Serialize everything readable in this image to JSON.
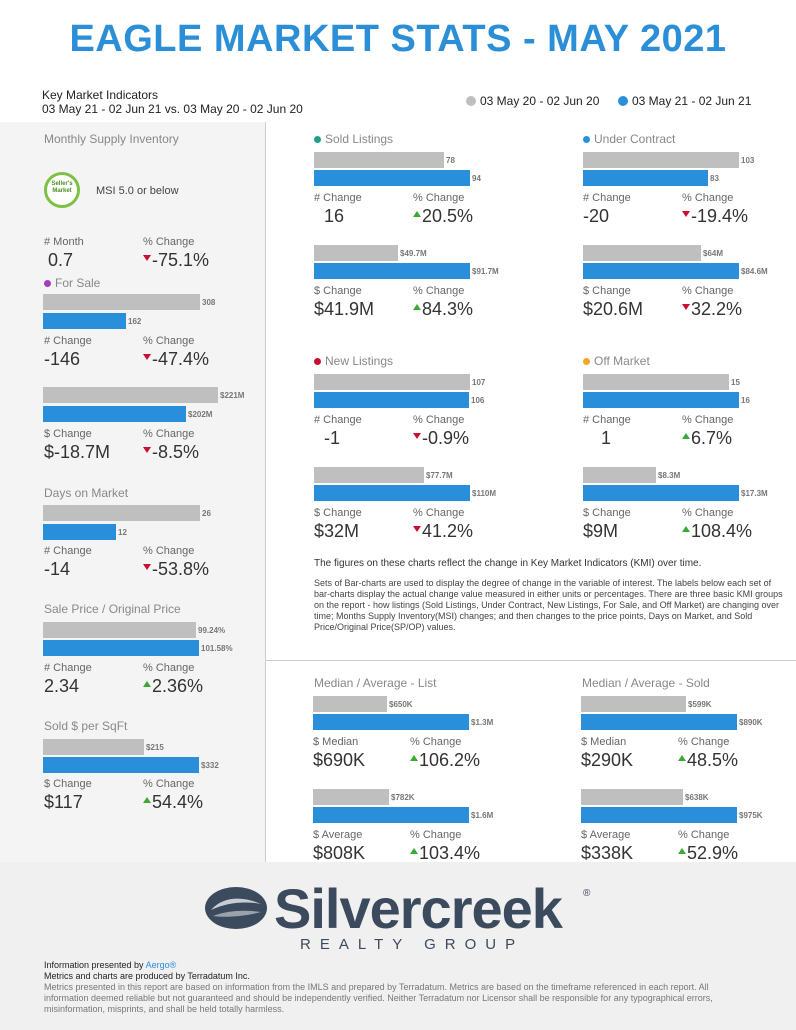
{
  "title": "EAGLE MARKET STATS - MAY 2021",
  "header": {
    "kmi_title": "Key Market Indicators",
    "kmi_range": "03 May 21 - 02 Jun 21 vs. 03 May 20 - 02 Jun 20",
    "legend_prev": "03 May 20 - 02 Jun 20",
    "legend_curr": "03 May 21 - 02 Jun 21"
  },
  "colors": {
    "prev": "#bfbfbf",
    "curr": "#2a8fdb",
    "title": "#2b8fd8",
    "up": "#3aaa35",
    "down": "#c8102e"
  },
  "left": {
    "msi_label": "Monthly Supply Inventory",
    "badge_line1": "Seller's",
    "badge_line2": "Market",
    "msi_text": "MSI 5.0 or below",
    "msi_month_lbl": "# Month",
    "msi_month_val": "0.7",
    "msi_pct_lbl": "% Change",
    "msi_pct_val": "-75.1%",
    "for_sale_label": "For Sale",
    "for_sale_prev": "308",
    "for_sale_curr": "162",
    "for_sale_num_lbl": "# Change",
    "for_sale_num_val": "-146",
    "for_sale_pct_lbl": "% Change",
    "for_sale_pct_val": "-47.4%",
    "for_sale_d_prev": "$221M",
    "for_sale_d_curr": "$202M",
    "for_sale_d_lbl": "$ Change",
    "for_sale_d_val": "$-18.7M",
    "for_sale_dpct_lbl": "% Change",
    "for_sale_dpct_val": "-8.5%",
    "dom_label": "Days on Market",
    "dom_prev": "26",
    "dom_curr": "12",
    "dom_num_lbl": "# Change",
    "dom_num_val": "-14",
    "dom_pct_lbl": "% Change",
    "dom_pct_val": "-53.8%",
    "sp_label": "Sale Price / Original Price",
    "sp_prev": "99.24%",
    "sp_curr": "101.58%",
    "sp_num_lbl": "# Change",
    "sp_num_val": "2.34",
    "sp_pct_lbl": "% Change",
    "sp_pct_val": "2.36%",
    "sqft_label": "Sold $ per SqFt",
    "sqft_prev": "$215",
    "sqft_curr": "$332",
    "sqft_num_lbl": "$ Change",
    "sqft_num_val": "$117",
    "sqft_pct_lbl": "% Change",
    "sqft_pct_val": "54.4%"
  },
  "sold": {
    "label": "Sold Listings",
    "prev": "78",
    "curr": "94",
    "num_lbl": "# Change",
    "num_val": "16",
    "pct_lbl": "% Change",
    "pct_val": "20.5%",
    "d_prev": "$49.7M",
    "d_curr": "$91.7M",
    "d_lbl": "$ Change",
    "d_val": "$41.9M",
    "dpct_lbl": "% Change",
    "dpct_val": "84.3%"
  },
  "uc": {
    "label": "Under Contract",
    "prev": "103",
    "curr": "83",
    "num_lbl": "# Change",
    "num_val": "-20",
    "pct_lbl": "% Change",
    "pct_val": "-19.4%",
    "d_prev": "$64M",
    "d_curr": "$84.6M",
    "d_lbl": "$ Change",
    "d_val": "$20.6M",
    "dpct_lbl": "% Change",
    "dpct_val": "32.2%"
  },
  "newl": {
    "label": "New Listings",
    "prev": "107",
    "curr": "106",
    "num_lbl": "# Change",
    "num_val": "-1",
    "pct_lbl": "% Change",
    "pct_val": "-0.9%",
    "d_prev": "$77.7M",
    "d_curr": "$110M",
    "d_lbl": "$ Change",
    "d_val": "$32M",
    "dpct_lbl": "% Change",
    "dpct_val": "41.2%"
  },
  "off": {
    "label": "Off Market",
    "prev": "15",
    "curr": "16",
    "num_lbl": "# Change",
    "num_val": "1",
    "pct_lbl": "% Change",
    "pct_val": "6.7%",
    "d_prev": "$8.3M",
    "d_curr": "$17.3M",
    "d_lbl": "$ Change",
    "d_val": "$9M",
    "dpct_lbl": "% Change",
    "dpct_val": "108.4%"
  },
  "notes": {
    "lead": "The figures on these charts reflect the change in Key Market Indicators (KMI) over time.",
    "body": "Sets of Bar-charts are used to display the degree of change in the variable of interest. The labels below each set of bar-charts display the actual change value measured in either units or percentages. There are three basic KMI groups on the report - how listings (Sold Listings, Under Contract, New Listings, For Sale, and Off Market) are changing over time; Months Supply Inventory(MSI) changes; and then changes to the price points, Days on Market, and Sold Price/Original Price(SP/OP) values."
  },
  "med_list": {
    "label": "Median / Average - List",
    "m_prev": "$650K",
    "m_curr": "$1.3M",
    "m_lbl": "$ Median",
    "m_val": "$690K",
    "mpct_lbl": "% Change",
    "mpct_val": "106.2%",
    "a_prev": "$782K",
    "a_curr": "$1.6M",
    "a_lbl": "$ Average",
    "a_val": "$808K",
    "apct_lbl": "% Change",
    "apct_val": "103.4%"
  },
  "med_sold": {
    "label": "Median / Average - Sold",
    "m_prev": "$599K",
    "m_curr": "$890K",
    "m_lbl": "$ Median",
    "m_val": "$290K",
    "mpct_lbl": "% Change",
    "mpct_val": "48.5%",
    "a_prev": "$638K",
    "a_curr": "$975K",
    "a_lbl": "$ Average",
    "a_val": "$338K",
    "apct_lbl": "% Change",
    "apct_val": "52.9%"
  },
  "footer": {
    "logo_main": "Silvercreek",
    "logo_reg": "®",
    "logo_sub": "REALTY GROUP",
    "presented": "Information presented by",
    "presented_link": "Aergo®",
    "produced": "Metrics and charts are produced by Terradatum Inc.",
    "disclaimer": "Metrics presented in this report are based on information from the IMLS and prepared by Terradatum. Metrics are based on the timeframe referenced in each report. All information deemed reliable but not guaranteed and should be independently verified. Neither Terradatum nor Licensor shall be responsible for any typographical errors, misinformation, misprints, and shall be held totally harmless."
  }
}
